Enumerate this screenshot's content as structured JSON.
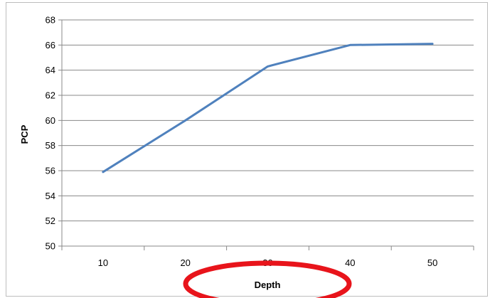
{
  "chart_data": {
    "type": "line",
    "title": "",
    "xlabel": "Depth",
    "ylabel": "PCP",
    "categories": [
      "10",
      "20",
      "30",
      "40",
      "50"
    ],
    "series": [
      {
        "values": [
          55.9,
          60.0,
          64.3,
          66.0,
          66.1
        ],
        "color": "#4f81bd"
      }
    ],
    "ylim": [
      50,
      68
    ],
    "yticks": [
      "50",
      "52",
      "54",
      "56",
      "58",
      "60",
      "62",
      "64",
      "66",
      "68"
    ],
    "grid": true,
    "legend": "none",
    "annotation": {
      "shape": "ellipse",
      "color": "#e8141b",
      "target": "xlabel"
    }
  }
}
